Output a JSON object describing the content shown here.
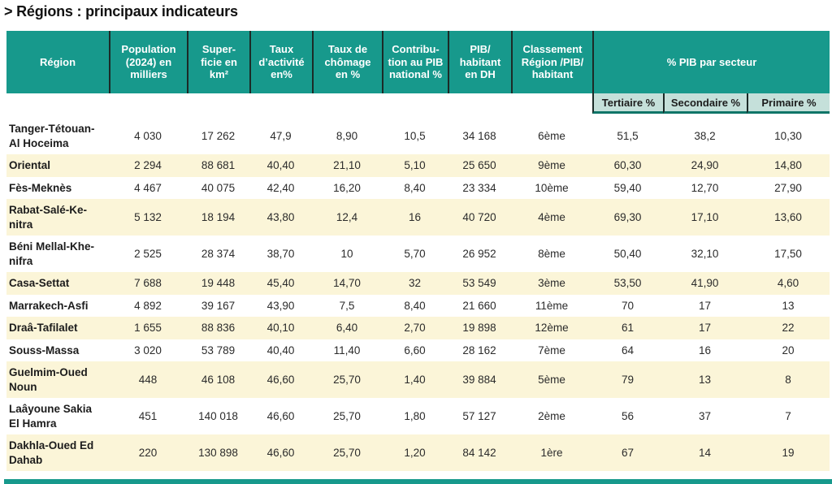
{
  "page_title": "> Régions : principaux indicateurs",
  "colors": {
    "header_teal": "#17998c",
    "header_separator": "#1c2a27",
    "subheader_bg": "#c5e0da",
    "subheader_border": "#0f7568",
    "alt_row_cream": "#fbf5d8",
    "header_text": "#ffffff",
    "body_text": "#2b2b2b"
  },
  "table": {
    "columns": [
      {
        "label": "Région"
      },
      {
        "label": "Population\n(2024) en\nmilliers"
      },
      {
        "label": "Super-\nficie en\nkm²"
      },
      {
        "label": "Taux\nd’activité\nen%"
      },
      {
        "label": "Taux de\nchômage\nen %"
      },
      {
        "label": "Contribu-\ntion au PIB\nnational %"
      },
      {
        "label": "PIB/\nhabitant\nen DH"
      },
      {
        "label": "Classement\nRégion /PIB/\nhabitant"
      }
    ],
    "group_header": "% PIB par secteur",
    "sub_columns": [
      "Tertiaire %",
      "Secondaire %",
      "Primaire %"
    ],
    "row_field_order": [
      "region",
      "population",
      "superficie",
      "taux_activite",
      "taux_chomage",
      "contribution_pib",
      "pib_habitant",
      "classement",
      "tertiaire",
      "secondaire",
      "primaire"
    ],
    "rows": [
      {
        "region": "Tanger-Tétouan-\nAl Hoceima",
        "population": "4 030",
        "superficie": "17 262",
        "taux_activite": "47,9",
        "taux_chomage": "8,90",
        "contribution_pib": "10,5",
        "pib_habitant": "34 168",
        "classement": "6ème",
        "tertiaire": "51,5",
        "secondaire": "38,2",
        "primaire": "10,30"
      },
      {
        "region": "Oriental",
        "population": "2 294",
        "superficie": "88 681",
        "taux_activite": "40,40",
        "taux_chomage": "21,10",
        "contribution_pib": "5,10",
        "pib_habitant": "25 650",
        "classement": "9ème",
        "tertiaire": "60,30",
        "secondaire": "24,90",
        "primaire": "14,80"
      },
      {
        "region": "Fès-Meknès",
        "population": "4 467",
        "superficie": "40 075",
        "taux_activite": "42,40",
        "taux_chomage": "16,20",
        "contribution_pib": "8,40",
        "pib_habitant": "23 334",
        "classement": "10ème",
        "tertiaire": "59,40",
        "secondaire": "12,70",
        "primaire": "27,90"
      },
      {
        "region": "Rabat-Salé-Ke-\nnitra",
        "population": "5 132",
        "superficie": "18 194",
        "taux_activite": "43,80",
        "taux_chomage": "12,4",
        "contribution_pib": "16",
        "pib_habitant": "40 720",
        "classement": "4ème",
        "tertiaire": "69,30",
        "secondaire": "17,10",
        "primaire": "13,60"
      },
      {
        "region": "Béni Mellal-Khe-\nnifra",
        "population": "2 525",
        "superficie": "28 374",
        "taux_activite": "38,70",
        "taux_chomage": "10",
        "contribution_pib": "5,70",
        "pib_habitant": "26 952",
        "classement": "8ème",
        "tertiaire": "50,40",
        "secondaire": "32,10",
        "primaire": "17,50"
      },
      {
        "region": "Casa-Settat",
        "population": "7 688",
        "superficie": "19 448",
        "taux_activite": "45,40",
        "taux_chomage": "14,70",
        "contribution_pib": "32",
        "pib_habitant": "53 549",
        "classement": "3ème",
        "tertiaire": "53,50",
        "secondaire": "41,90",
        "primaire": "4,60"
      },
      {
        "region": "Marrakech-Asfi",
        "population": "4 892",
        "superficie": "39 167",
        "taux_activite": "43,90",
        "taux_chomage": "7,5",
        "contribution_pib": "8,40",
        "pib_habitant": "21 660",
        "classement": "11ème",
        "tertiaire": "70",
        "secondaire": "17",
        "primaire": "13"
      },
      {
        "region": "Draâ-Tafilalet",
        "population": "1 655",
        "superficie": "88 836",
        "taux_activite": "40,10",
        "taux_chomage": "6,40",
        "contribution_pib": "2,70",
        "pib_habitant": "19 898",
        "classement": "12ème",
        "tertiaire": "61",
        "secondaire": "17",
        "primaire": "22"
      },
      {
        "region": "Souss-Massa",
        "population": "3 020",
        "superficie": "53 789",
        "taux_activite": "40,40",
        "taux_chomage": "11,40",
        "contribution_pib": "6,60",
        "pib_habitant": "28 162",
        "classement": "7ème",
        "tertiaire": "64",
        "secondaire": "16",
        "primaire": "20"
      },
      {
        "region": "Guelmim-Oued\nNoun",
        "population": "448",
        "superficie": "46 108",
        "taux_activite": "46,60",
        "taux_chomage": "25,70",
        "contribution_pib": "1,40",
        "pib_habitant": "39 884",
        "classement": "5ème",
        "tertiaire": "79",
        "secondaire": "13",
        "primaire": "8"
      },
      {
        "region": "Laâyoune Sakia\nEl Hamra",
        "population": "451",
        "superficie": "140 018",
        "taux_activite": "46,60",
        "taux_chomage": "25,70",
        "contribution_pib": "1,80",
        "pib_habitant": "57 127",
        "classement": "2ème",
        "tertiaire": "56",
        "secondaire": "37",
        "primaire": "7"
      },
      {
        "region": "Dakhla-Oued Ed\nDahab",
        "population": "220",
        "superficie": "130 898",
        "taux_activite": "46,60",
        "taux_chomage": "25,70",
        "contribution_pib": "1,20",
        "pib_habitant": "84 142",
        "classement": "1ère",
        "tertiaire": "67",
        "secondaire": "14",
        "primaire": "19"
      }
    ]
  }
}
